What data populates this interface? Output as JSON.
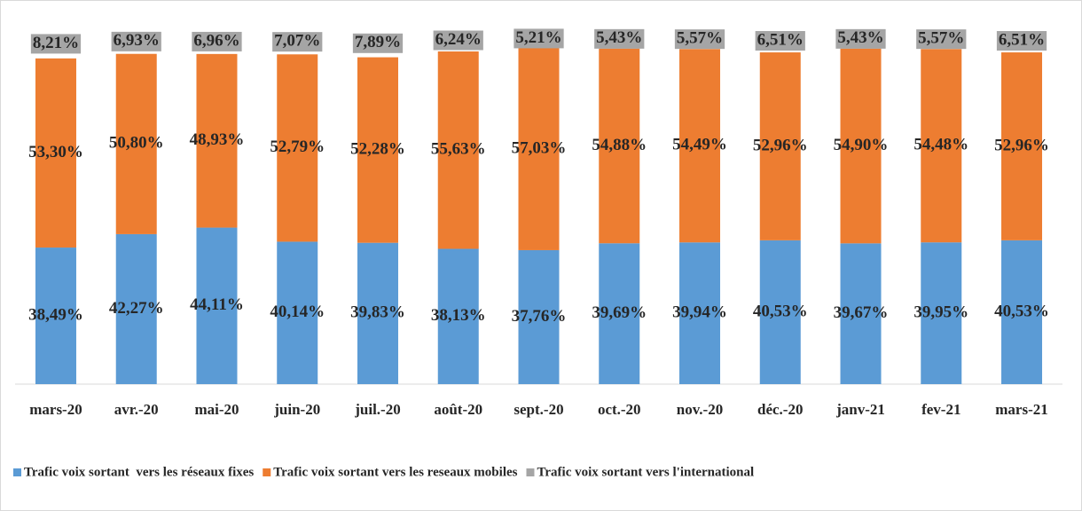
{
  "chart_data": {
    "type": "stacked_bar",
    "categories": [
      "mars-20",
      "avr.-20",
      "mai-20",
      "juin-20",
      "juil.-20",
      "août-20",
      "sept.-20",
      "oct.-20",
      "nov.-20",
      "déc.-20",
      "janv-21",
      "fev-21",
      "mars-21"
    ],
    "series": [
      {
        "name": "Trafic voix sortant  vers les réseaux fixes",
        "color": "#5b9bd5",
        "values": [
          38.49,
          42.27,
          44.11,
          40.14,
          39.83,
          38.13,
          37.76,
          39.69,
          39.94,
          40.53,
          39.67,
          39.95,
          40.53
        ],
        "value_labels": [
          "38,49%",
          "42,27%",
          "44,11%",
          "40,14%",
          "39,83%",
          "38,13%",
          "37,76%",
          "39,69%",
          "39,94%",
          "40,53%",
          "39,67%",
          "39,95%",
          "40,53%"
        ]
      },
      {
        "name": "Trafic voix sortant vers les reseaux mobiles",
        "color": "#ed7d31",
        "values": [
          53.3,
          50.8,
          48.93,
          52.79,
          52.28,
          55.63,
          57.03,
          54.88,
          54.49,
          52.96,
          54.9,
          54.48,
          52.96
        ],
        "value_labels": [
          "53,30%",
          "50,80%",
          "48,93%",
          "52,79%",
          "52,28%",
          "55,63%",
          "57,03%",
          "54,88%",
          "54,49%",
          "52,96%",
          "54,90%",
          "54,48%",
          "52,96%"
        ]
      },
      {
        "name": "Trafic voix sortant vers l'international",
        "color": "#a5a5a5",
        "values": [
          8.21,
          6.93,
          6.96,
          7.07,
          7.89,
          6.24,
          5.21,
          5.43,
          5.57,
          6.51,
          5.43,
          5.57,
          6.51
        ],
        "value_labels": [
          "8,21%",
          "6,93%",
          "6,96%",
          "7,07%",
          "7,89%",
          "6,24%",
          "5,21%",
          "5,43%",
          "5,57%",
          "6,51%",
          "5,43%",
          "5,57%",
          "6,51%"
        ]
      }
    ],
    "ylim": [
      0,
      100
    ],
    "legend": "bottom"
  }
}
